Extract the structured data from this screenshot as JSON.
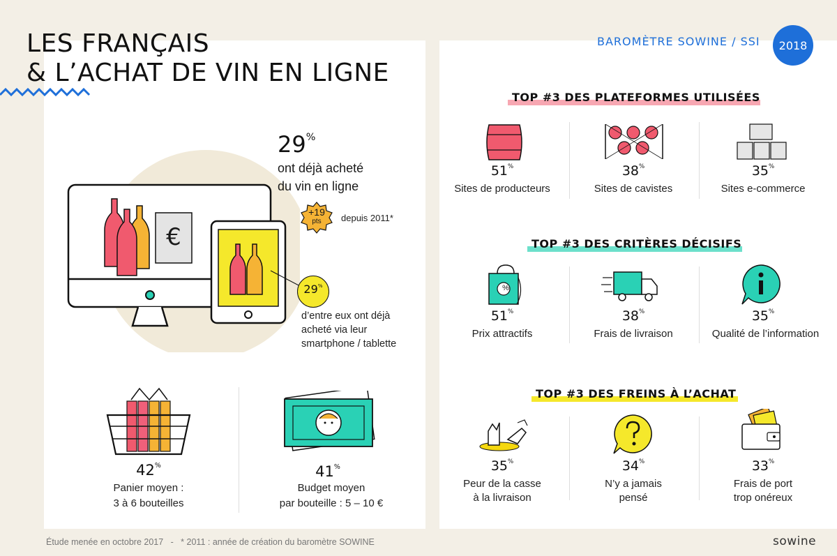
{
  "title": {
    "line1": "LES FRANÇAIS",
    "line2": "& L’ACHAT DE VIN EN LIGNE"
  },
  "header": {
    "brand": "BAROMÈTRE SOWINE / SSI",
    "year": "2018"
  },
  "colors": {
    "blue": "#1e6fd9",
    "pink": "#f05a6e",
    "teal": "#2ad1b5",
    "yellow": "#f5d80f",
    "orange": "#f5b335",
    "cream": "#f1ead9"
  },
  "left": {
    "main_stat": {
      "value": "29",
      "unit": "%",
      "line1": "ont déjà acheté",
      "line2": "du vin en ligne"
    },
    "growth": {
      "value": "+19",
      "unit": "pts",
      "since": "depuis 2011*"
    },
    "mobile_stat": {
      "value": "29",
      "unit": "%",
      "line1": "d’entre eux ont déjà",
      "line2": "acheté via leur",
      "line3": "smartphone / tablette"
    },
    "currency_symbol": "€",
    "basket": {
      "value": "42",
      "unit": "%",
      "line1": "Panier moyen :",
      "line2": "3 à 6 bouteilles",
      "icon": "wine-basket-icon"
    },
    "budget": {
      "value": "41",
      "unit": "%",
      "line1": "Budget moyen",
      "line2": "par bouteille : 5 – 10 €",
      "icon": "banknote-icon"
    }
  },
  "platforms": {
    "title": "TOP #3 DES PLATEFORMES UTILISÉES",
    "items": [
      {
        "value": "51",
        "unit": "%",
        "label": "Sites de producteurs",
        "icon": "barrel-icon"
      },
      {
        "value": "38",
        "unit": "%",
        "label": "Sites de cavistes",
        "icon": "wine-rack-icon"
      },
      {
        "value": "35",
        "unit": "%",
        "label": "Sites e-commerce",
        "icon": "boxes-icon"
      }
    ]
  },
  "criteria": {
    "title": "TOP #3 DES CRITÈRES DÉCISIFS",
    "items": [
      {
        "value": "51",
        "unit": "%",
        "label": "Prix attractifs",
        "icon": "discount-bag-icon"
      },
      {
        "value": "38",
        "unit": "%",
        "label": "Frais de livraison",
        "icon": "truck-icon"
      },
      {
        "value": "35",
        "unit": "%",
        "label": "Qualité de l’information",
        "icon": "info-bubble-icon"
      }
    ]
  },
  "brakes": {
    "title": "TOP #3 DES FREINS À L’ACHAT",
    "items": [
      {
        "value": "35",
        "unit": "%",
        "line1": "Peur de la casse",
        "line2": "à la livraison",
        "icon": "broken-bottle-icon"
      },
      {
        "value": "34",
        "unit": "%",
        "line1": "N’y a jamais",
        "line2": "pensé",
        "icon": "question-bubble-icon"
      },
      {
        "value": "33",
        "unit": "%",
        "line1": "Frais de port",
        "line2": "trop onéreux",
        "icon": "wallet-icon"
      }
    ]
  },
  "footer": {
    "note": "Étude menée en octobre 2017   -   * 2011 : année de création du baromètre SOWINE",
    "brand": "sowine"
  }
}
